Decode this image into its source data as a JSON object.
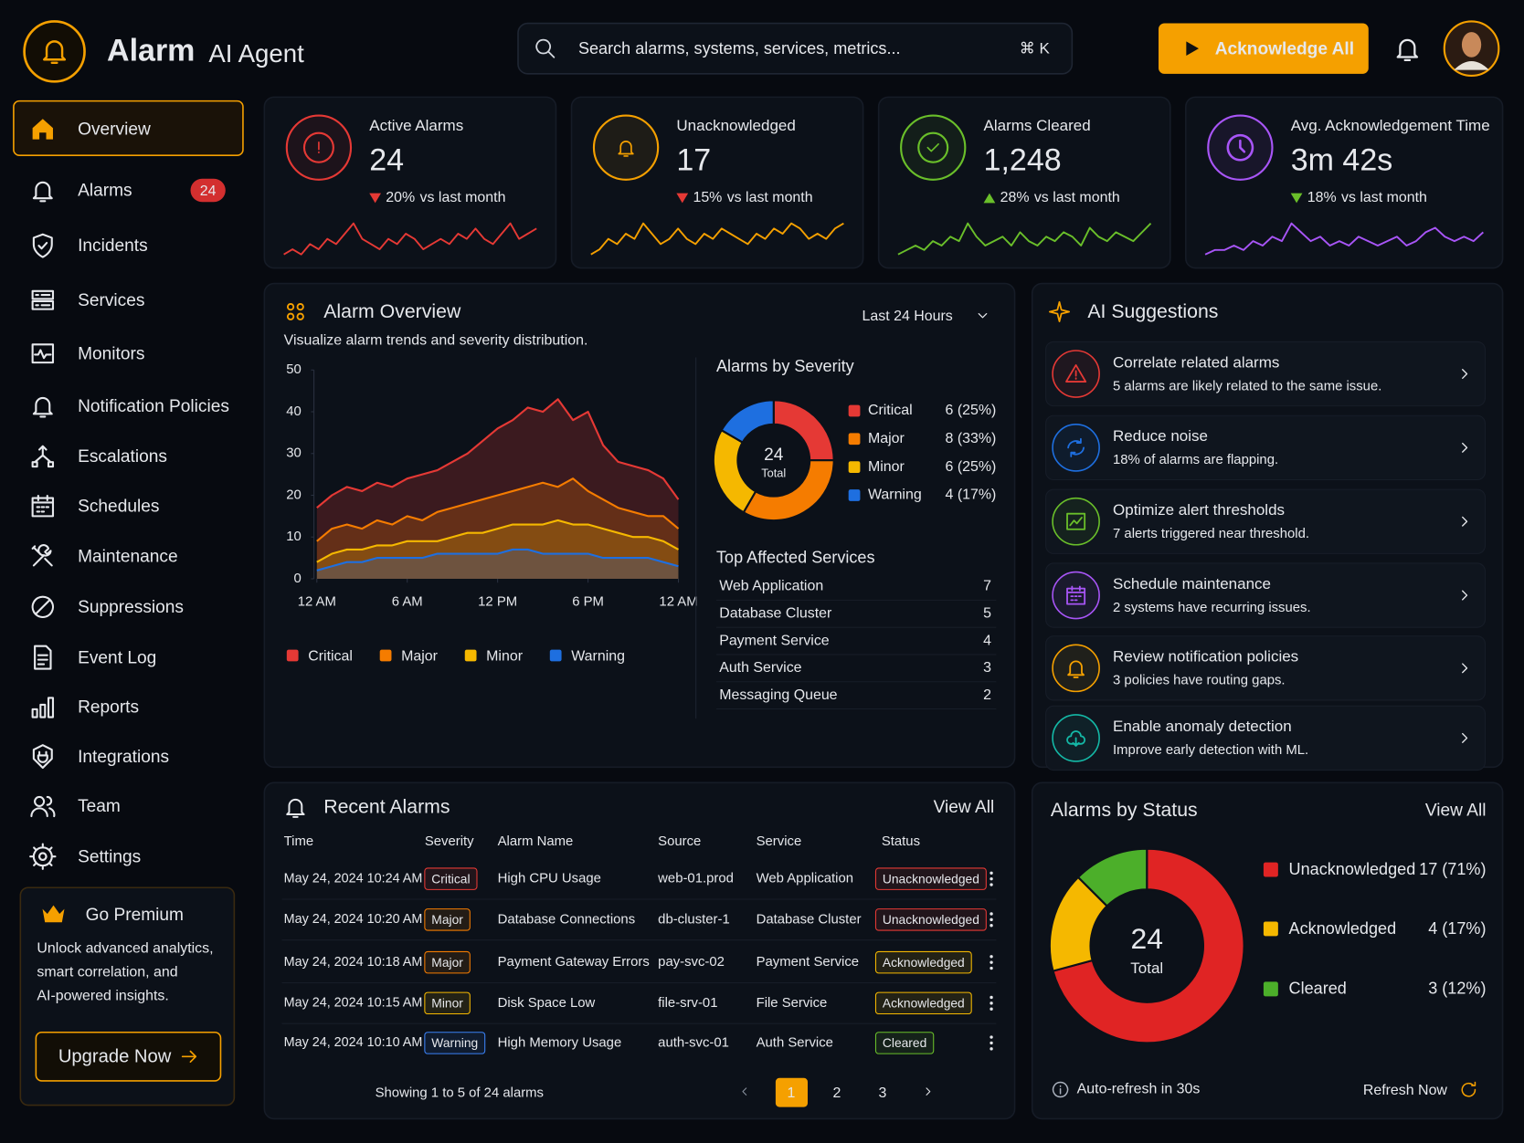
{
  "header": {
    "brand": "Alarm",
    "brand_sub": "AI Agent",
    "search_placeholder": "Search alarms, systems, services, metrics...",
    "search_shortcut": "⌘ K",
    "primary_action": "Acknowledge All"
  },
  "sidebar": {
    "items": [
      {
        "label": "Overview",
        "active": true
      },
      {
        "label": "Alarms",
        "badge": "24"
      },
      {
        "label": "Incidents"
      },
      {
        "label": "Services"
      },
      {
        "label": "Monitors"
      },
      {
        "label": "Notification Policies"
      },
      {
        "label": "Escalations"
      },
      {
        "label": "Schedules"
      },
      {
        "label": "Maintenance"
      },
      {
        "label": "Suppressions"
      },
      {
        "label": "Event Log"
      },
      {
        "label": "Reports"
      },
      {
        "label": "Integrations"
      },
      {
        "label": "Team"
      },
      {
        "label": "Settings"
      }
    ],
    "premium": {
      "title": "Go Premium",
      "lines": [
        "Unlock advanced analytics,",
        "smart correlation, and",
        "AI-powered insights."
      ],
      "button": "Upgrade Now"
    }
  },
  "kpis": [
    {
      "label": "Active Alarms",
      "value": "24",
      "change": "20%",
      "change_note": "vs last month",
      "trend": "down",
      "change_color": "#e53935",
      "color": "#e53935",
      "sparkline": [
        3,
        4,
        3,
        5,
        4,
        6,
        5,
        7,
        9,
        6,
        5,
        4,
        6,
        5,
        7,
        6,
        4,
        5,
        6,
        5,
        7,
        6,
        8,
        6,
        5,
        7,
        9,
        6,
        7,
        8
      ]
    },
    {
      "label": "Unacknowledged",
      "value": "17",
      "change": "15%",
      "change_note": "vs last month",
      "trend": "down",
      "change_color": "#e53935",
      "color": "#f5a000",
      "sparkline": [
        2,
        3,
        5,
        4,
        6,
        5,
        8,
        6,
        4,
        5,
        7,
        5,
        4,
        6,
        5,
        7,
        6,
        5,
        4,
        6,
        5,
        7,
        6,
        8,
        7,
        5,
        6,
        5,
        7,
        8
      ]
    },
    {
      "label": "Alarms Cleared",
      "value": "1,248",
      "change": "28%",
      "change_note": "vs last month",
      "trend": "up",
      "change_color": "#6abf2a",
      "color": "#6abf2a",
      "sparkline": [
        2,
        3,
        4,
        3,
        5,
        4,
        6,
        5,
        9,
        6,
        4,
        5,
        6,
        4,
        7,
        5,
        4,
        6,
        5,
        7,
        6,
        4,
        8,
        6,
        5,
        7,
        6,
        5,
        7,
        9
      ]
    },
    {
      "label": "Avg. Acknowledgement Time",
      "value": "3m 42s",
      "change": "18%",
      "change_note": "vs last month",
      "trend": "down",
      "change_color": "#6abf2a",
      "color": "#a855f7",
      "sparkline": [
        2,
        3,
        3,
        4,
        3,
        5,
        4,
        6,
        5,
        9,
        7,
        5,
        6,
        4,
        5,
        4,
        6,
        5,
        4,
        5,
        6,
        4,
        5,
        7,
        8,
        6,
        5,
        6,
        5,
        7
      ]
    }
  ],
  "alarm_overview": {
    "title": "Alarm Overview",
    "subtitle": "Visualize alarm trends and severity distribution.",
    "range": "Last 24 Hours",
    "trend_chart": {
      "type": "area",
      "x": [
        0,
        1,
        2,
        3,
        4,
        5,
        6,
        7,
        8,
        9,
        10,
        11,
        12,
        13,
        14,
        15,
        16,
        17,
        18,
        19,
        20,
        21,
        22,
        23,
        24
      ],
      "xlim": [
        0,
        24
      ],
      "xticks": [
        {
          "value": 0,
          "label": "12 AM"
        },
        {
          "value": 6,
          "label": "6 AM"
        },
        {
          "value": 12,
          "label": "12 PM"
        },
        {
          "value": 18,
          "label": "6 PM"
        },
        {
          "value": 24,
          "label": "12 AM"
        }
      ],
      "ylim": [
        0,
        50
      ],
      "yticks": [
        0,
        10,
        20,
        30,
        40,
        50
      ],
      "series": [
        {
          "name": "Critical",
          "color": "#e53935",
          "values": [
            17,
            20,
            22,
            21,
            23,
            22,
            24,
            25,
            26,
            28,
            30,
            33,
            36,
            38,
            41,
            40,
            43,
            38,
            40,
            32,
            28,
            27,
            26,
            24,
            19
          ]
        },
        {
          "name": "Major",
          "color": "#f57c00",
          "values": [
            9,
            12,
            13,
            12,
            14,
            13,
            15,
            14,
            16,
            17,
            18,
            19,
            20,
            21,
            22,
            23,
            22,
            24,
            21,
            19,
            17,
            16,
            15,
            15,
            12
          ]
        },
        {
          "name": "Minor",
          "color": "#f5b800",
          "values": [
            4,
            6,
            7,
            7,
            8,
            8,
            9,
            9,
            9,
            10,
            11,
            11,
            12,
            13,
            13,
            13,
            14,
            13,
            13,
            12,
            11,
            10,
            10,
            9,
            7
          ]
        },
        {
          "name": "Warning",
          "color": "#1e6fe0",
          "values": [
            2,
            3,
            4,
            4,
            5,
            5,
            5,
            5,
            6,
            6,
            6,
            6,
            6,
            7,
            7,
            6,
            6,
            6,
            6,
            5,
            5,
            5,
            5,
            4,
            3
          ]
        }
      ]
    },
    "severity_chart": {
      "type": "donut",
      "title": "Alarms by Severity",
      "center_value": "24",
      "center_label": "Total",
      "categories": [
        "Critical",
        "Major",
        "Minor",
        "Warning"
      ],
      "values": [
        6,
        8,
        6,
        4
      ],
      "value_labels": [
        "6 (25%)",
        "8 (33%)",
        "6 (25%)",
        "4 (17%)"
      ],
      "colors": [
        "#e53935",
        "#f57c00",
        "#f5b800",
        "#1e6fe0"
      ]
    },
    "top_services": {
      "title": "Top Affected Services",
      "rows": [
        {
          "name": "Web Application",
          "count": 7
        },
        {
          "name": "Database Cluster",
          "count": 5
        },
        {
          "name": "Payment Service",
          "count": 4
        },
        {
          "name": "Auth Service",
          "count": 3
        },
        {
          "name": "Messaging Queue",
          "count": 2
        }
      ]
    }
  },
  "ai_suggestions": {
    "title": "AI Suggestions",
    "items": [
      {
        "title": "Correlate related alarms",
        "description": "5 alarms are likely related to the same issue.",
        "color": "#e53935"
      },
      {
        "title": "Reduce noise",
        "description": "18% of alarms are flapping.",
        "color": "#1e6fe0"
      },
      {
        "title": "Optimize alert thresholds",
        "description": "7 alerts triggered near threshold.",
        "color": "#6abf2a"
      },
      {
        "title": "Schedule maintenance",
        "description": "2 systems have recurring issues.",
        "color": "#a855f7"
      },
      {
        "title": "Review notification policies",
        "description": "3 policies have routing gaps.",
        "color": "#f5a000"
      },
      {
        "title": "Enable anomaly detection",
        "description": "Improve early detection with ML.",
        "color": "#14b8a6"
      }
    ]
  },
  "recent_alarms": {
    "title": "Recent Alarms",
    "view_all": "View All",
    "columns": [
      "Time",
      "Severity",
      "Alarm Name",
      "Source",
      "Service",
      "Status"
    ],
    "rows": [
      {
        "time": "May 24, 2024 10:24 AM",
        "severity": "Critical",
        "severity_color": "#e53935",
        "name": "High CPU Usage",
        "source": "web-01.prod",
        "service": "Web Application",
        "status": "Unacknowledged",
        "status_color": "#e53935"
      },
      {
        "time": "May 24, 2024 10:20 AM",
        "severity": "Major",
        "severity_color": "#f57c00",
        "name": "Database Connections",
        "source": "db-cluster-1",
        "service": "Database Cluster",
        "status": "Unacknowledged",
        "status_color": "#e53935"
      },
      {
        "time": "May 24, 2024 10:18 AM",
        "severity": "Major",
        "severity_color": "#f57c00",
        "name": "Payment Gateway Errors",
        "source": "pay-svc-02",
        "service": "Payment Service",
        "status": "Acknowledged",
        "status_color": "#f5b800"
      },
      {
        "time": "May 24, 2024 10:15 AM",
        "severity": "Minor",
        "severity_color": "#f5b800",
        "name": "Disk Space Low",
        "source": "file-srv-01",
        "service": "File Service",
        "status": "Acknowledged",
        "status_color": "#f5b800"
      },
      {
        "time": "May 24, 2024 10:10 AM",
        "severity": "Warning",
        "severity_color": "#3b82f6",
        "name": "High Memory Usage",
        "source": "auth-svc-01",
        "service": "Auth Service",
        "status": "Cleared",
        "status_color": "#6abf2a"
      }
    ],
    "footer": "Showing 1 to 5 of 24 alarms",
    "pages": [
      {
        "label": "1",
        "active": true
      },
      {
        "label": "2"
      },
      {
        "label": "3"
      }
    ]
  },
  "alarms_by_status": {
    "type": "donut",
    "title": "Alarms by Status",
    "view_all": "View All",
    "center_value": "24",
    "center_label": "Total",
    "categories": [
      "Unacknowledged",
      "Acknowledged",
      "Cleared"
    ],
    "values": [
      17,
      4,
      3
    ],
    "value_labels": [
      "17 (71%)",
      "4 (17%)",
      "3 (12%)"
    ],
    "colors": [
      "#e02424",
      "#f5b800",
      "#4caf2a"
    ],
    "footer": "Auto-refresh in 30s",
    "refresh": "Refresh Now"
  }
}
